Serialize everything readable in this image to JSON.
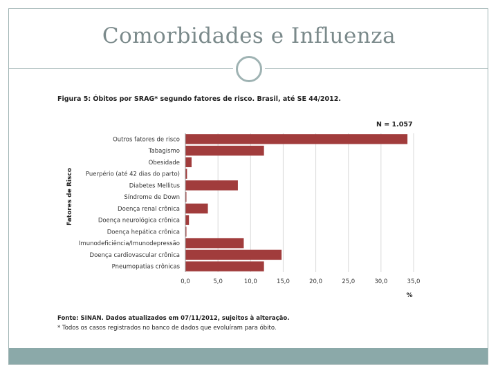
{
  "slide": {
    "title": "Comorbidades e Influenza",
    "colors": {
      "accent": "#9fb3b3",
      "bar": "#a13c3c",
      "footer": "#8ba9a9"
    }
  },
  "figure": {
    "caption": "Figura 5: Óbitos por SRAG* segundo fatores de risco. Brasil, até SE 44/2012.",
    "n_label": "N = 1.057",
    "source": "Fonte: SINAN. Dados atualizados em 07/11/2012, sujeitos à alteração.",
    "note": "* Todos os casos registrados no banco de dados que evoluíram para óbito."
  },
  "chart_data": {
    "type": "bar",
    "orientation": "horizontal",
    "title": "Figura 5: Óbitos por SRAG* segundo fatores de risco. Brasil, até SE 44/2012.",
    "xlabel": "%",
    "ylabel": "Fatores de Risco",
    "xlim": [
      0,
      35
    ],
    "xticks": [
      "0,0",
      "5,0",
      "10,0",
      "15,0",
      "20,0",
      "25,0",
      "30,0",
      "35,0"
    ],
    "categories": [
      "Outros fatores de risco",
      "Tabagismo",
      "Obesidade",
      "Puerpério (até 42 dias do parto)",
      "Diabetes Mellitus",
      "Síndrome de Down",
      "Doença renal crônica",
      "Doença neurológica crônica",
      "Doença hepática crônica",
      "Imunodeficiência/Imunodepressão",
      "Doença cardiovascular crônica",
      "Pneumopatias crônicas"
    ],
    "values": [
      34.0,
      12.0,
      0.9,
      0.2,
      8.0,
      0.1,
      3.4,
      0.5,
      0.1,
      8.9,
      14.7,
      12.0
    ],
    "grid": true
  }
}
